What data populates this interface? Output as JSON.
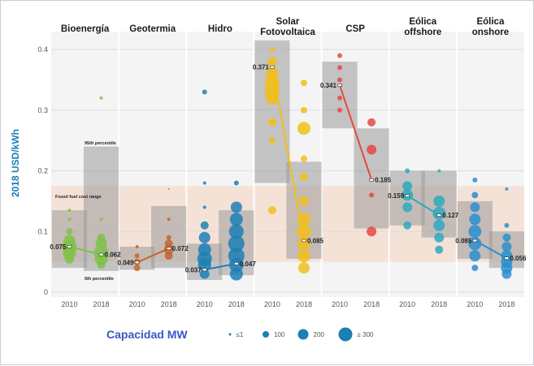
{
  "chart_data": {
    "type": "scatter",
    "ylabel": "2018 USD/kWh",
    "ylim": [
      0,
      0.4
    ],
    "yticks": [
      "0",
      "0.1",
      "0.2",
      "0.3",
      "0.4"
    ],
    "yticks_values": [
      0,
      0.1,
      0.2,
      0.3,
      0.4
    ],
    "grid": true,
    "fossil_fuel_cost_range": {
      "label": "Fossil fuel cost range",
      "low": 0.05,
      "high": 0.175
    },
    "percentile_labels": {
      "p95": "95th percentile",
      "p5": "5th percentile"
    },
    "categories": [
      {
        "name": "Bioenergía",
        "years": [
          "2010",
          "2018"
        ],
        "p5": [
          0.04,
          0.035
        ],
        "p95": [
          0.135,
          0.24
        ],
        "avg": [
          0.075,
          0.062
        ],
        "avg_labels": [
          "0.075",
          "0.062"
        ],
        "color": "#7ec24a",
        "points": [
          [
            [
              0.055,
              6
            ],
            [
              0.065,
              8
            ],
            [
              0.075,
              9
            ],
            [
              0.085,
              7
            ],
            [
              0.1,
              4
            ],
            [
              0.12,
              2
            ],
            [
              0.135,
              2
            ]
          ],
          [
            [
              0.045,
              5
            ],
            [
              0.055,
              8
            ],
            [
              0.065,
              9
            ],
            [
              0.08,
              7
            ],
            [
              0.09,
              5
            ],
            [
              0.12,
              2
            ],
            [
              0.32,
              2
            ]
          ]
        ]
      },
      {
        "name": "Geotermia",
        "years": [
          "2010",
          "2018"
        ],
        "p5": [
          0.037,
          0.04
        ],
        "p95": [
          0.075,
          0.142
        ],
        "avg": [
          0.049,
          0.072
        ],
        "avg_labels": [
          "0.049",
          "0.072"
        ],
        "color": "#c8642a",
        "points": [
          [
            [
              0.04,
              4
            ],
            [
              0.05,
              4
            ],
            [
              0.06,
              3
            ],
            [
              0.075,
              2
            ]
          ],
          [
            [
              0.06,
              5
            ],
            [
              0.07,
              6
            ],
            [
              0.08,
              5
            ],
            [
              0.09,
              3
            ],
            [
              0.12,
              2
            ],
            [
              0.17,
              1
            ]
          ]
        ]
      },
      {
        "name": "Hidro",
        "years": [
          "2010",
          "2018"
        ],
        "p5": [
          0.02,
          0.028
        ],
        "p95": [
          0.08,
          0.135
        ],
        "avg": [
          0.037,
          0.047
        ],
        "avg_labels": [
          "0.037",
          "0.047"
        ],
        "color": "#1c7fb6",
        "points": [
          [
            [
              0.03,
              6
            ],
            [
              0.045,
              8
            ],
            [
              0.055,
              9
            ],
            [
              0.07,
              8
            ],
            [
              0.09,
              7
            ],
            [
              0.11,
              5
            ],
            [
              0.14,
              2
            ],
            [
              0.18,
              2
            ],
            [
              0.33,
              3
            ]
          ],
          [
            [
              0.03,
              8
            ],
            [
              0.045,
              9
            ],
            [
              0.06,
              10
            ],
            [
              0.08,
              10
            ],
            [
              0.1,
              9
            ],
            [
              0.12,
              8
            ],
            [
              0.14,
              7
            ],
            [
              0.18,
              3
            ]
          ]
        ]
      },
      {
        "name": "Solar Fotovoltaica",
        "years": [
          "2010",
          "2018"
        ],
        "p5": [
          0.18,
          0.055
        ],
        "p95": [
          0.415,
          0.215
        ],
        "avg": [
          0.371,
          0.085
        ],
        "avg_labels": [
          "0.371",
          "0.085"
        ],
        "color": "#f2be1a",
        "points": [
          [
            [
              0.135,
              5
            ],
            [
              0.25,
              4
            ],
            [
              0.28,
              5
            ],
            [
              0.32,
              8
            ],
            [
              0.33,
              9
            ],
            [
              0.345,
              9
            ],
            [
              0.36,
              8
            ],
            [
              0.38,
              6
            ],
            [
              0.4,
              3
            ]
          ],
          [
            [
              0.04,
              7
            ],
            [
              0.06,
              8
            ],
            [
              0.08,
              8
            ],
            [
              0.1,
              9
            ],
            [
              0.12,
              8
            ],
            [
              0.15,
              6
            ],
            [
              0.19,
              5
            ],
            [
              0.22,
              4
            ],
            [
              0.27,
              8
            ],
            [
              0.3,
              4
            ],
            [
              0.345,
              4
            ]
          ]
        ]
      },
      {
        "name": "CSP",
        "years": [
          "2010",
          "2018"
        ],
        "p5": [
          0.27,
          0.105
        ],
        "p95": [
          0.38,
          0.27
        ],
        "avg": [
          0.341,
          0.185
        ],
        "avg_labels": [
          "0.341",
          "0.185"
        ],
        "color": "#e34a43",
        "points": [
          [
            [
              0.3,
              3
            ],
            [
              0.32,
              3
            ],
            [
              0.35,
              3
            ],
            [
              0.37,
              3
            ],
            [
              0.39,
              3
            ]
          ],
          [
            [
              0.1,
              6
            ],
            [
              0.16,
              3
            ],
            [
              0.235,
              6
            ],
            [
              0.28,
              5
            ]
          ]
        ]
      },
      {
        "name": "Eólica offshore",
        "years": [
          "2010",
          "2018"
        ],
        "p5": [
          0.11,
          0.09
        ],
        "p95": [
          0.2,
          0.2
        ],
        "avg": [
          0.159,
          0.127
        ],
        "avg_labels": [
          "0.159",
          "0.127"
        ],
        "color": "#2da9bf",
        "points": [
          [
            [
              0.11,
              5
            ],
            [
              0.14,
              6
            ],
            [
              0.16,
              7
            ],
            [
              0.175,
              6
            ],
            [
              0.2,
              3
            ]
          ],
          [
            [
              0.07,
              5
            ],
            [
              0.09,
              6
            ],
            [
              0.11,
              7
            ],
            [
              0.13,
              8
            ],
            [
              0.15,
              7
            ],
            [
              0.2,
              2
            ]
          ]
        ]
      },
      {
        "name": "Eólica onshore",
        "years": [
          "2010",
          "2018"
        ],
        "p5": [
          0.055,
          0.04
        ],
        "p95": [
          0.15,
          0.1
        ],
        "avg": [
          0.085,
          0.056
        ],
        "avg_labels": [
          "0.085",
          "0.056"
        ],
        "color": "#2a8fd0",
        "points": [
          [
            [
              0.04,
              4
            ],
            [
              0.06,
              7
            ],
            [
              0.08,
              8
            ],
            [
              0.1,
              8
            ],
            [
              0.12,
              7
            ],
            [
              0.14,
              6
            ],
            [
              0.16,
              4
            ],
            [
              0.185,
              3
            ]
          ],
          [
            [
              0.03,
              6
            ],
            [
              0.04,
              7
            ],
            [
              0.05,
              7
            ],
            [
              0.06,
              7
            ],
            [
              0.075,
              6
            ],
            [
              0.09,
              5
            ],
            [
              0.11,
              3
            ],
            [
              0.17,
              2
            ]
          ]
        ]
      }
    ]
  },
  "legend": {
    "title": "Capacidad MW",
    "items": [
      "≤1",
      "100",
      "200",
      "≥ 300"
    ],
    "sizes": [
      1.5,
      4,
      6.5,
      8.5
    ],
    "color": "#1c7fb6"
  }
}
